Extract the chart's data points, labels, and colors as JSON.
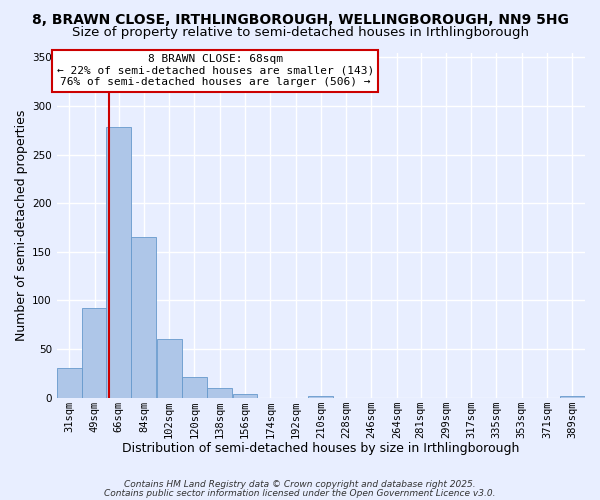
{
  "title1": "8, BRAWN CLOSE, IRTHLINGBOROUGH, WELLINGBOROUGH, NN9 5HG",
  "title2": "Size of property relative to semi-detached houses in Irthlingborough",
  "xlabel": "Distribution of semi-detached houses by size in Irthlingborough",
  "ylabel": "Number of semi-detached properties",
  "bin_labels": [
    "31sqm",
    "49sqm",
    "66sqm",
    "84sqm",
    "102sqm",
    "120sqm",
    "138sqm",
    "156sqm",
    "174sqm",
    "192sqm",
    "210sqm",
    "228sqm",
    "246sqm",
    "264sqm",
    "281sqm",
    "299sqm",
    "317sqm",
    "335sqm",
    "353sqm",
    "371sqm",
    "389sqm"
  ],
  "bin_edges": [
    31,
    49,
    66,
    84,
    102,
    120,
    138,
    156,
    174,
    192,
    210,
    228,
    246,
    264,
    281,
    299,
    317,
    335,
    353,
    371,
    389
  ],
  "bar_heights": [
    30,
    92,
    278,
    165,
    60,
    21,
    10,
    4,
    0,
    0,
    2,
    0,
    0,
    0,
    0,
    0,
    0,
    0,
    0,
    0,
    2
  ],
  "bar_color": "#aec6e8",
  "bar_edge_color": "#6699cc",
  "property_size": 68,
  "vline_color": "#cc0000",
  "annotation_line1": "8 BRAWN CLOSE: 68sqm",
  "annotation_line2": "← 22% of semi-detached houses are smaller (143)",
  "annotation_line3": "76% of semi-detached houses are larger (506) →",
  "annotation_box_color": "#ffffff",
  "annotation_box_edge": "#cc0000",
  "ylim": [
    0,
    355
  ],
  "footer1": "Contains HM Land Registry data © Crown copyright and database right 2025.",
  "footer2": "Contains public sector information licensed under the Open Government Licence v3.0.",
  "bg_color": "#e8eeff",
  "grid_color": "#ffffff",
  "title_fontsize": 10,
  "subtitle_fontsize": 9.5,
  "axis_label_fontsize": 9,
  "tick_fontsize": 7.5,
  "annotation_fontsize": 8,
  "footer_fontsize": 6.5
}
